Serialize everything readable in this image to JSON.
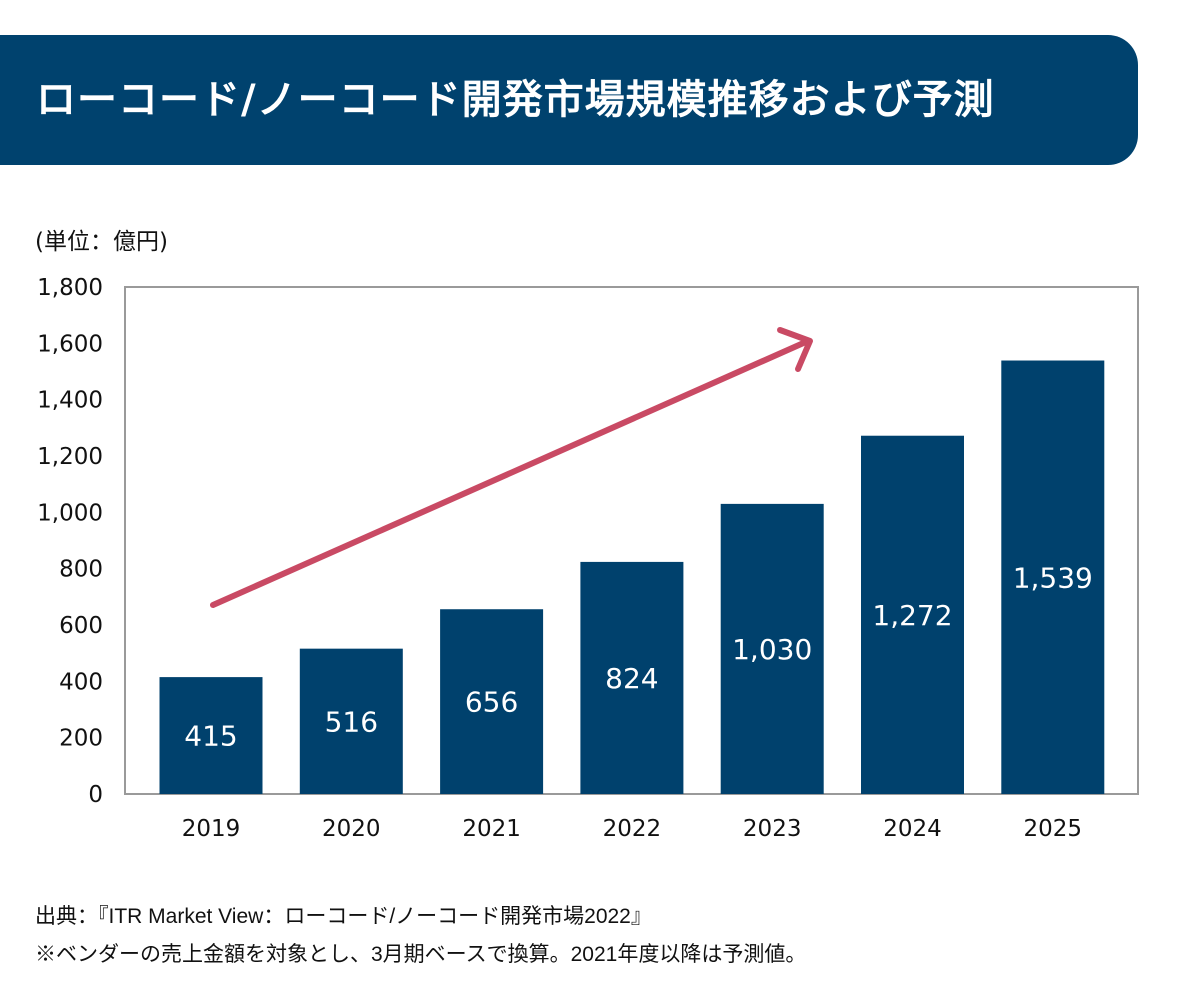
{
  "title": "ローコード/ノーコード開発市場規模推移および予測",
  "unit_label": "(単位：億円)",
  "chart_data": {
    "type": "bar",
    "categories": [
      "2019",
      "2020",
      "2021",
      "2022",
      "2023",
      "2024",
      "2025"
    ],
    "values": [
      415,
      516,
      656,
      824,
      1030,
      1272,
      1539
    ],
    "value_labels": [
      "415",
      "516",
      "656",
      "824",
      "1,030",
      "1,272",
      "1,539"
    ],
    "ylim": [
      0,
      1800
    ],
    "yticks": [
      0,
      200,
      400,
      600,
      800,
      1000,
      1200,
      1400,
      1600,
      1800
    ],
    "ytick_labels": [
      "0",
      "200",
      "400",
      "600",
      "800",
      "1,000",
      "1,200",
      "1,400",
      "1,600",
      "1,800"
    ],
    "grid": false,
    "bar_color": "#00416d",
    "annotation": {
      "type": "trend-arrow",
      "color": "#c94a64"
    }
  },
  "footer": {
    "source": "出典：『ITR Market View：ローコード/ノーコード開発市場2022』",
    "note": "※ベンダーの売上金額を対象とし、3月期ベースで換算。2021年度以降は予測値。"
  }
}
